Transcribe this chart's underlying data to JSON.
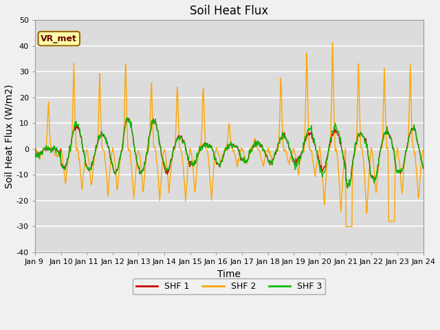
{
  "title": "Soil Heat Flux",
  "xlabel": "Time",
  "ylabel": "Soil Heat Flux (W/m2)",
  "ylim": [
    -40,
    50
  ],
  "yticks": [
    -40,
    -30,
    -20,
    -10,
    0,
    10,
    20,
    30,
    40,
    50
  ],
  "tick_labels": [
    "Jan 9 ",
    "Jan 10",
    "Jan 11",
    "Jan 12",
    "Jan 13",
    "Jan 14",
    "Jan 15",
    "Jan 16",
    "Jan 17",
    "Jan 18",
    "Jan 19",
    "Jan 20",
    "Jan 21",
    "Jan 22",
    "Jan 23",
    "Jan 24"
  ],
  "colors": {
    "SHF1": "#cc0000",
    "SHF2": "#ffa500",
    "SHF3": "#00bb00"
  },
  "legend_labels": [
    "SHF 1",
    "SHF 2",
    "SHF 3"
  ],
  "annotation_text": "VR_met",
  "plot_bg_color": "#dcdcdc",
  "fig_bg_color": "#f0f0f0",
  "title_fontsize": 12,
  "axis_label_fontsize": 10,
  "tick_fontsize": 8,
  "n_days": 15,
  "pts_per_day": 48
}
